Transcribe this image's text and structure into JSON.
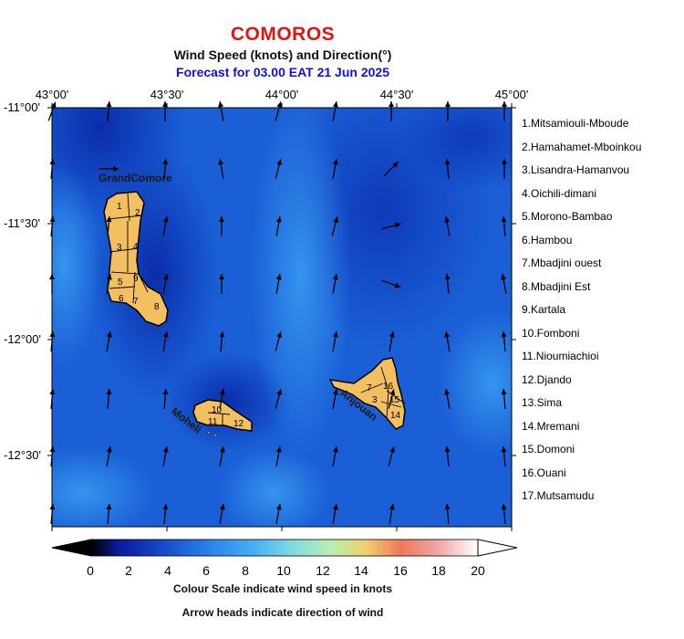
{
  "title": "COMOROS",
  "subtitle": "Wind Speed (knots) and Direction(°)",
  "forecast": "Forecast for  03.00 EAT 21 Jun 2025",
  "lon_labels": [
    "43°00'",
    "43°30'",
    "44°00'",
    "44°30'",
    "45°00'"
  ],
  "lat_labels": [
    "-11°00'",
    "-11°30'",
    "-12°00'",
    "-12°30'"
  ],
  "islands": [
    "GrandComore",
    "Moheli",
    "Anjouan"
  ],
  "legend": [
    "1.Mitsamiouli-Mboude",
    "2.Hamahamet-Mboinkou",
    "3.Lisandra-Hamanvou",
    "4.Oichili-dimani",
    "5.Morono-Bambao",
    "6.Hambou",
    "7.Mbadjini ouest",
    "8.Mbadjini Est",
    "9.Kartala",
    "10.Fomboni",
    "11.Nioumiachioi",
    "12.Djando",
    "13.Sima",
    "14.Mremani",
    "15.Domoni",
    "16.Ouani",
    "17.Mutsamudu"
  ],
  "colorbar": {
    "ticks": [
      "0",
      "2",
      "4",
      "6",
      "8",
      "10",
      "12",
      "14",
      "16",
      "18",
      "20"
    ],
    "colors": [
      "#000000",
      "#0a1a9a",
      "#1548c8",
      "#2a7fe8",
      "#45b0f5",
      "#7fdbe0",
      "#b8f0b0",
      "#f0d070",
      "#f07858",
      "#f0a8a8",
      "#fff4f4"
    ]
  },
  "notes": [
    "Colour Scale indicate wind speed in knots",
    "Arrow heads indicate direction of wind"
  ],
  "wind_field": {
    "columns": [
      "42°58'",
      "43°13'",
      "43°28'",
      "43°43'",
      "43°58'",
      "44°13'",
      "44°28'",
      "44°43'",
      "44°58'"
    ],
    "rows": [
      "-11°00'",
      "-11°15'",
      "-11°30'",
      "-11°45'",
      "-12°00'",
      "-12°15'",
      "-12°30'",
      "-12°45'"
    ],
    "direction_deg": [
      [
        20,
        5,
        0,
        350,
        15,
        10,
        0,
        0,
        0
      ],
      [
        5,
        90,
        5,
        350,
        15,
        10,
        45,
        355,
        0
      ],
      [
        5,
        5,
        10,
        0,
        10,
        15,
        75,
        350,
        355
      ],
      [
        0,
        10,
        10,
        0,
        10,
        10,
        110,
        355,
        350
      ],
      [
        5,
        10,
        10,
        5,
        15,
        10,
        10,
        350,
        355
      ],
      [
        5,
        5,
        5,
        10,
        15,
        10,
        15,
        350,
        355
      ],
      [
        5,
        10,
        10,
        10,
        10,
        10,
        15,
        355,
        355
      ],
      [
        5,
        5,
        5,
        10,
        10,
        10,
        10,
        355,
        355
      ]
    ]
  }
}
